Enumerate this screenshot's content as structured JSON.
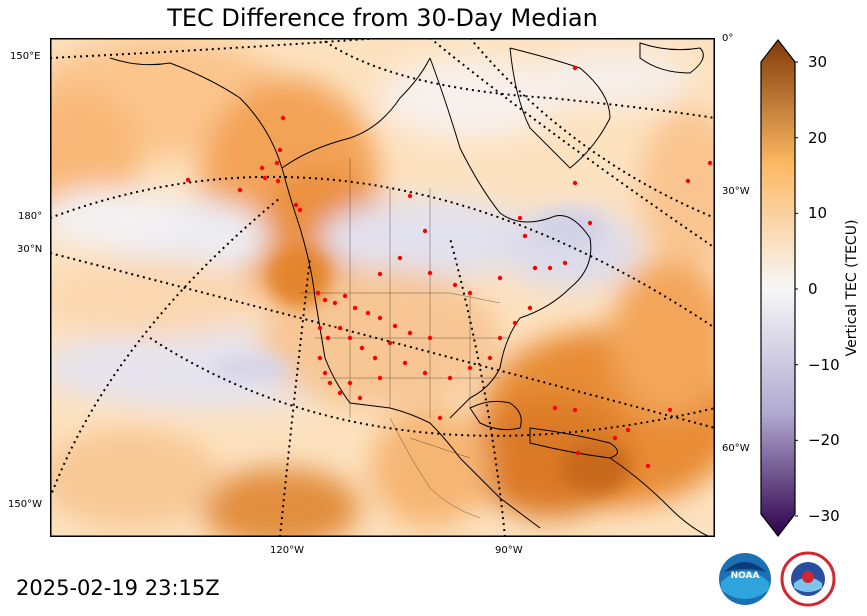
{
  "title": "TEC Difference from 30-Day Median",
  "timestamp": "2025-02-19 23:15Z",
  "map_labels": {
    "lon_150e": "150°E",
    "lon_180": "180°",
    "lat_30n": "30°N",
    "lon_150w": "150°W",
    "lon_0": "0°",
    "lon_30w": "30°W",
    "lon_60w": "60°W",
    "lon_120w": "120°W",
    "lon_90w": "90°W"
  },
  "colorbar": {
    "label": "Vertical TEC (TECU)",
    "ticks": [
      "30",
      "20",
      "10",
      "0",
      "−10",
      "−20",
      "−30"
    ],
    "tick_values": [
      30,
      20,
      10,
      0,
      -10,
      -20,
      -30
    ],
    "min": -30,
    "max": 30,
    "colors": {
      "low": "#2d004b",
      "mid_low": "#b2abd2",
      "center": "#f7f7f7",
      "mid_high": "#fdb863",
      "high": "#7f3b08"
    }
  },
  "logos": {
    "noaa": "NOAA",
    "nws": "NATIONAL WEATHER SERVICE"
  }
}
